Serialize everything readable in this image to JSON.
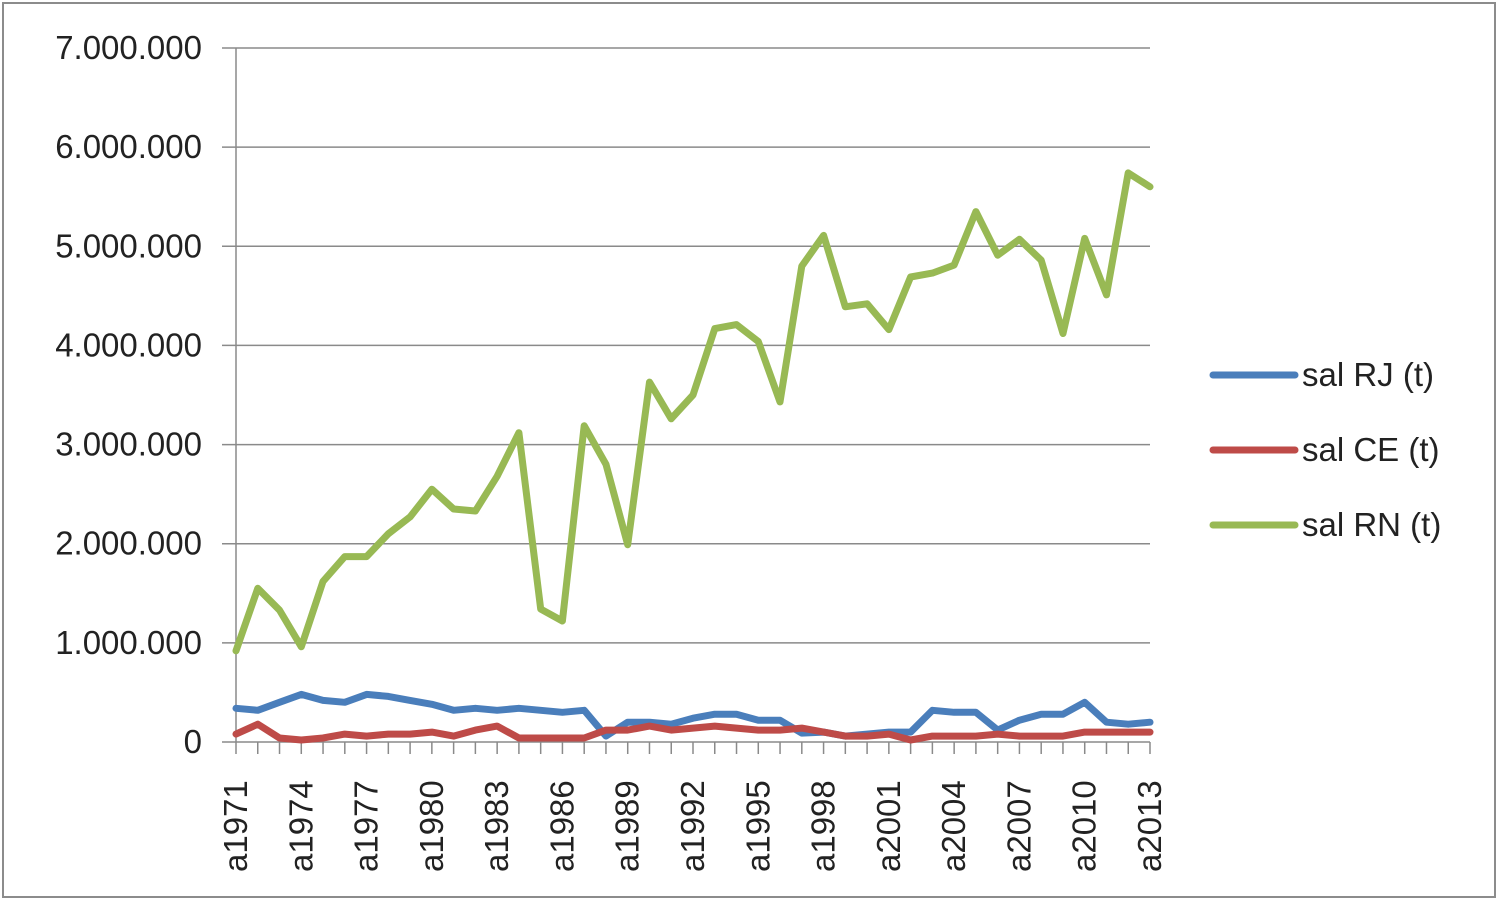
{
  "chart_data": {
    "type": "line",
    "title": "",
    "xlabel": "",
    "ylabel": "",
    "ylim": [
      0,
      7000000
    ],
    "y_ticks": [
      {
        "value": 0,
        "label": "0"
      },
      {
        "value": 1000000,
        "label": "1.000.000"
      },
      {
        "value": 2000000,
        "label": "2.000.000"
      },
      {
        "value": 3000000,
        "label": "3.000.000"
      },
      {
        "value": 4000000,
        "label": "4.000.000"
      },
      {
        "value": 5000000,
        "label": "5.000.000"
      },
      {
        "value": 6000000,
        "label": "6.000.000"
      },
      {
        "value": 7000000,
        "label": "7.000.000"
      }
    ],
    "grid": "horizontal",
    "legend_position": "right",
    "categories": [
      "a1971",
      "a1972",
      "a1973",
      "a1974",
      "a1975",
      "a1976",
      "a1977",
      "a1978",
      "a1979",
      "a1980",
      "a1981",
      "a1982",
      "a1983",
      "a1984",
      "a1985",
      "a1986",
      "a1987",
      "a1988",
      "a1989",
      "a1990",
      "a1991",
      "a1992",
      "a1993",
      "a1994",
      "a1995",
      "a1996",
      "a1997",
      "a1998",
      "a1999",
      "a2000",
      "a2001",
      "a2002",
      "a2003",
      "a2004",
      "a2005",
      "a2006",
      "a2007",
      "a2008",
      "a2009",
      "a2010",
      "a2011",
      "a2012",
      "a2013"
    ],
    "x_tick_labels": [
      "a1971",
      "a1974",
      "a1977",
      "a1980",
      "a1983",
      "a1986",
      "a1989",
      "a1992",
      "a1995",
      "a1998",
      "a2001",
      "a2004",
      "a2007",
      "a2010",
      "a2013"
    ],
    "series": [
      {
        "name": "sal RJ (t)",
        "color": "#4a7ebb",
        "values": [
          340000,
          320000,
          400000,
          480000,
          420000,
          400000,
          480000,
          460000,
          420000,
          380000,
          320000,
          340000,
          320000,
          340000,
          320000,
          300000,
          320000,
          60000,
          200000,
          200000,
          180000,
          240000,
          280000,
          280000,
          220000,
          220000,
          90000,
          100000,
          60000,
          80000,
          100000,
          100000,
          320000,
          300000,
          300000,
          120000,
          220000,
          280000,
          280000,
          400000,
          200000,
          180000,
          200000
        ]
      },
      {
        "name": "sal CE (t)",
        "color": "#be4b48",
        "values": [
          80000,
          180000,
          40000,
          20000,
          40000,
          80000,
          60000,
          80000,
          80000,
          100000,
          60000,
          120000,
          160000,
          40000,
          40000,
          40000,
          40000,
          120000,
          120000,
          160000,
          120000,
          140000,
          160000,
          140000,
          120000,
          120000,
          140000,
          100000,
          60000,
          60000,
          80000,
          20000,
          60000,
          60000,
          60000,
          80000,
          60000,
          60000,
          60000,
          100000,
          100000,
          100000,
          100000
        ]
      },
      {
        "name": "sal RN (t)",
        "color": "#98b954",
        "values": [
          920000,
          1550000,
          1330000,
          960000,
          1620000,
          1870000,
          1870000,
          2100000,
          2270000,
          2550000,
          2350000,
          2330000,
          2680000,
          3120000,
          1340000,
          1220000,
          3190000,
          2800000,
          1990000,
          3630000,
          3260000,
          3500000,
          4170000,
          4210000,
          4040000,
          3430000,
          4800000,
          5110000,
          4390000,
          4420000,
          4160000,
          4690000,
          4730000,
          4810000,
          5350000,
          4910000,
          5070000,
          4860000,
          4120000,
          5080000,
          4510000,
          5740000,
          5600000
        ]
      }
    ]
  }
}
